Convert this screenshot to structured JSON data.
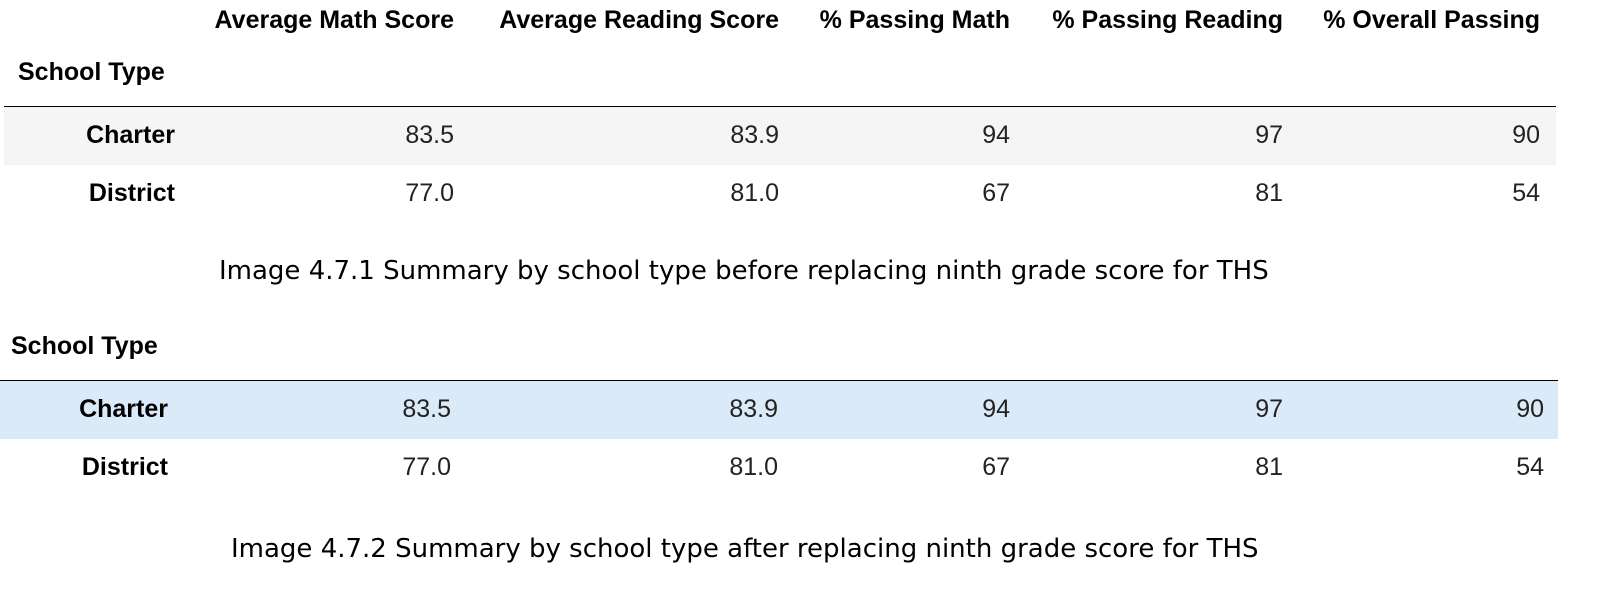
{
  "table1": {
    "index_name": "School Type",
    "columns": [
      "Average Math Score",
      "Average Reading Score",
      "% Passing Math",
      "% Passing Reading",
      "% Overall Passing"
    ],
    "rows": [
      {
        "label": "Charter",
        "values": [
          "83.5",
          "83.9",
          "94",
          "97",
          "90"
        ]
      },
      {
        "label": "District",
        "values": [
          "77.0",
          "81.0",
          "67",
          "81",
          "54"
        ]
      }
    ],
    "caption": "Image 4.7.1 Summary by school type before replacing ninth grade score for THS"
  },
  "table2": {
    "index_name": "School Type",
    "rows": [
      {
        "label": "Charter",
        "values": [
          "83.5",
          "83.9",
          "94",
          "97",
          "90"
        ]
      },
      {
        "label": "District",
        "values": [
          "77.0",
          "81.0",
          "67",
          "81",
          "54"
        ]
      }
    ],
    "caption": "Image 4.7.2 Summary by school type after replacing ninth grade score for THS"
  },
  "colors": {
    "striped_row": "#f5f5f5",
    "highlighted_row": "#dbeaf8"
  }
}
